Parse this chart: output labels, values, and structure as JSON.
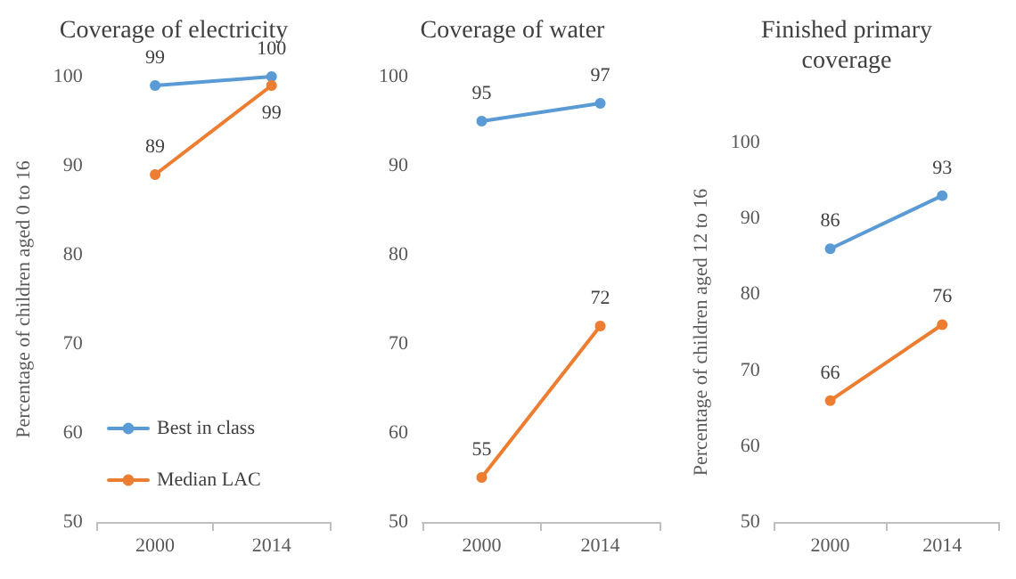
{
  "chart_data": [
    {
      "type": "line",
      "title": "Coverage of electricity",
      "ylabel": "Percentage of children aged 0 to 16",
      "categories": [
        "2000",
        "2014"
      ],
      "ylim": [
        50,
        100
      ],
      "yticks": [
        50,
        60,
        70,
        80,
        90,
        100
      ],
      "grid": false,
      "legend": "bottom left",
      "marker": "circle",
      "data_labels": true,
      "series": [
        {
          "name": "Best in class",
          "color": "#5b9bd5",
          "values": [
            99,
            100
          ]
        },
        {
          "name": "Median LAC",
          "color": "#ed7d31",
          "values": [
            89,
            99
          ]
        }
      ]
    },
    {
      "type": "line",
      "title": "Coverage of water",
      "categories": [
        "2000",
        "2014"
      ],
      "ylim": [
        50,
        100
      ],
      "yticks": [
        50,
        60,
        70,
        80,
        90,
        100
      ],
      "grid": false,
      "legend": false,
      "marker": "circle",
      "data_labels": true,
      "series": [
        {
          "color": "#5b9bd5",
          "values": [
            95,
            97
          ]
        },
        {
          "color": "#ed7d31",
          "values": [
            55,
            72
          ]
        }
      ]
    },
    {
      "type": "line",
      "title": "Finished primary\ncoverage",
      "ylabel": "Percentage of children aged 12 to 16",
      "categories": [
        "2000",
        "2014"
      ],
      "ylim": [
        50,
        100
      ],
      "yticks": [
        50,
        60,
        70,
        80,
        90,
        100
      ],
      "grid": false,
      "legend": false,
      "marker": "circle",
      "data_labels": true,
      "series": [
        {
          "color": "#5b9bd5",
          "values": [
            86,
            93
          ]
        },
        {
          "color": "#ed7d31",
          "values": [
            66,
            76
          ]
        }
      ]
    }
  ]
}
